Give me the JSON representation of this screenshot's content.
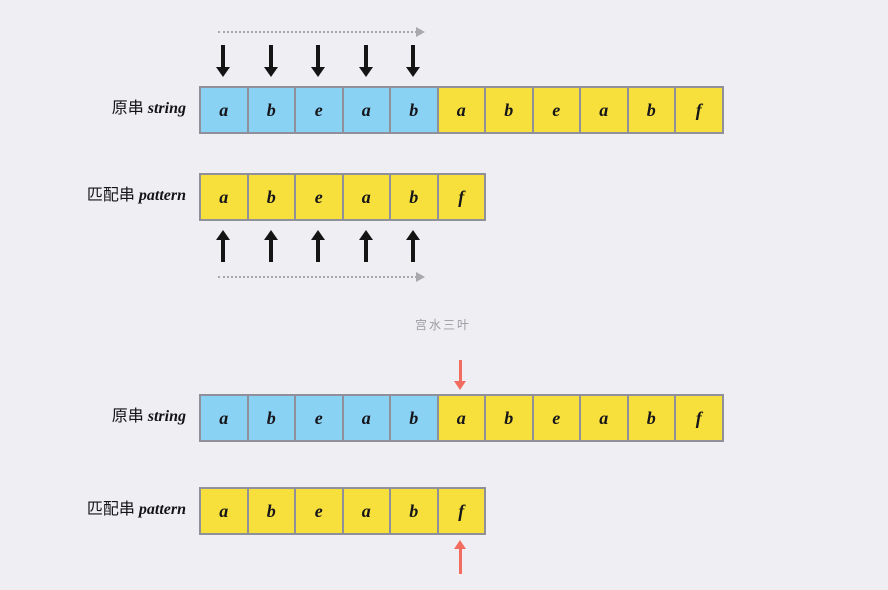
{
  "colors": {
    "bg": "#efeff3",
    "cell_blue": "#8ad2f4",
    "cell_yellow": "#f7e03c",
    "cell_border": "#90909a",
    "black_arrow": "#141414",
    "red_arrow": "#f26d5f",
    "dotted_arrow": "#a9a9ad",
    "watermark": "#9b9ba1"
  },
  "watermark": "宫水三叶",
  "top_section": {
    "string_label_cn": "原串",
    "string_label_en": "string",
    "pattern_label_cn": "匹配串",
    "pattern_label_en": "pattern",
    "string_cells": [
      {
        "letter": "a",
        "color": "blue"
      },
      {
        "letter": "b",
        "color": "blue"
      },
      {
        "letter": "e",
        "color": "blue"
      },
      {
        "letter": "a",
        "color": "blue"
      },
      {
        "letter": "b",
        "color": "blue"
      },
      {
        "letter": "a",
        "color": "yellow"
      },
      {
        "letter": "b",
        "color": "yellow"
      },
      {
        "letter": "e",
        "color": "yellow"
      },
      {
        "letter": "a",
        "color": "yellow"
      },
      {
        "letter": "b",
        "color": "yellow"
      },
      {
        "letter": "f",
        "color": "yellow"
      }
    ],
    "pattern_cells": [
      {
        "letter": "a",
        "color": "yellow"
      },
      {
        "letter": "b",
        "color": "yellow"
      },
      {
        "letter": "e",
        "color": "yellow"
      },
      {
        "letter": "a",
        "color": "yellow"
      },
      {
        "letter": "b",
        "color": "yellow"
      },
      {
        "letter": "f",
        "color": "yellow"
      }
    ],
    "matched_pointer_count": 5
  },
  "bottom_section": {
    "string_label_cn": "原串",
    "string_label_en": "string",
    "pattern_label_cn": "匹配串",
    "pattern_label_en": "pattern",
    "string_cells": [
      {
        "letter": "a",
        "color": "blue"
      },
      {
        "letter": "b",
        "color": "blue"
      },
      {
        "letter": "e",
        "color": "blue"
      },
      {
        "letter": "a",
        "color": "blue"
      },
      {
        "letter": "b",
        "color": "blue"
      },
      {
        "letter": "a",
        "color": "yellow"
      },
      {
        "letter": "b",
        "color": "yellow"
      },
      {
        "letter": "e",
        "color": "yellow"
      },
      {
        "letter": "a",
        "color": "yellow"
      },
      {
        "letter": "b",
        "color": "yellow"
      },
      {
        "letter": "f",
        "color": "yellow"
      }
    ],
    "pattern_cells": [
      {
        "letter": "a",
        "color": "yellow"
      },
      {
        "letter": "b",
        "color": "yellow"
      },
      {
        "letter": "e",
        "color": "yellow"
      },
      {
        "letter": "a",
        "color": "yellow"
      },
      {
        "letter": "b",
        "color": "yellow"
      },
      {
        "letter": "f",
        "color": "yellow"
      }
    ]
  }
}
